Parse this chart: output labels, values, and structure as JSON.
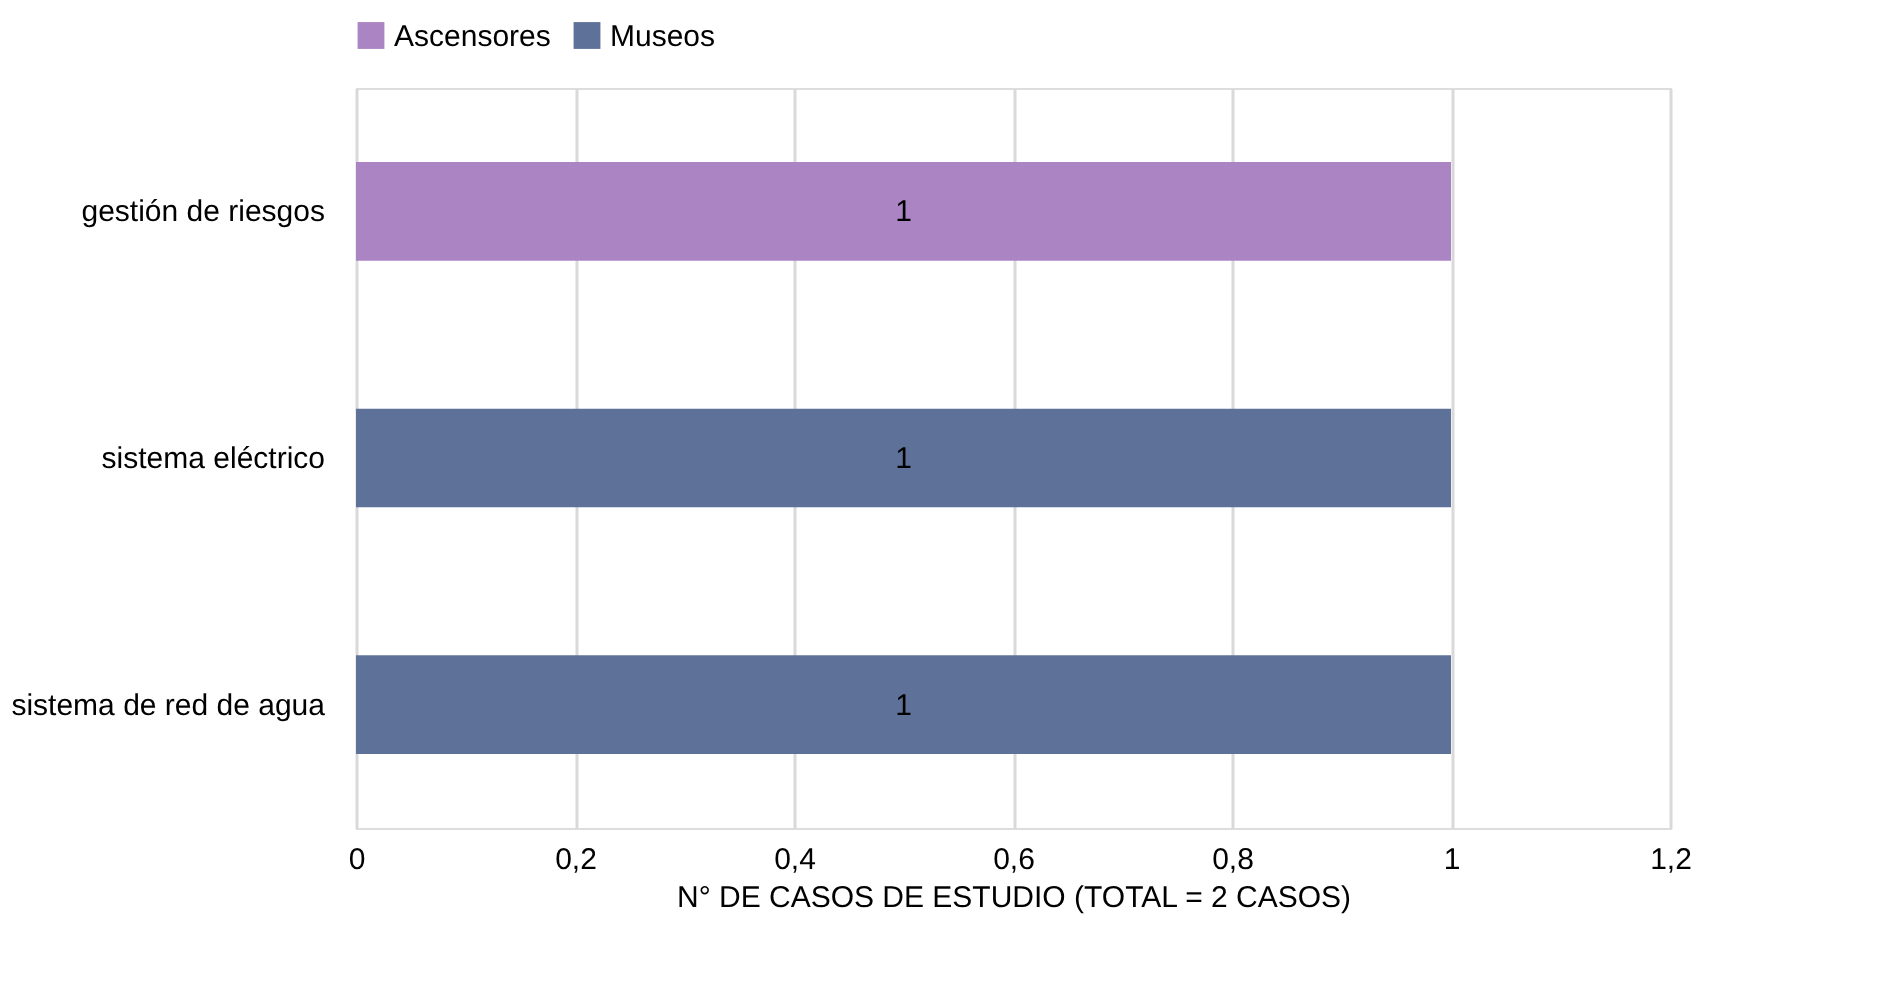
{
  "chart_data": {
    "type": "bar",
    "orientation": "horizontal",
    "stacked": true,
    "xlabel": "N° DE CASOS DE ESTUDIO (TOTAL = 2 CASOS)",
    "categories": [
      "gestión de riesgos",
      "sistema eléctrico",
      "sistema de red de agua"
    ],
    "series": [
      {
        "name": "Ascensores",
        "color": "#ab84c4",
        "values": [
          1,
          null,
          null
        ]
      },
      {
        "name": "Museos",
        "color": "#5e7299",
        "values": [
          null,
          1,
          1
        ]
      }
    ],
    "xlim": [
      0,
      1.2
    ],
    "xticks": [
      0,
      {
        "value": 0.2,
        "label": "0,2"
      },
      {
        "value": 0.4,
        "label": "0,4"
      },
      {
        "value": 0.6,
        "label": "0,6"
      },
      {
        "value": 0.8,
        "label": "0,8"
      },
      1,
      {
        "value": 1.2,
        "label": "1,2"
      }
    ],
    "grid": "x",
    "legend": "top",
    "data_labels": true
  }
}
